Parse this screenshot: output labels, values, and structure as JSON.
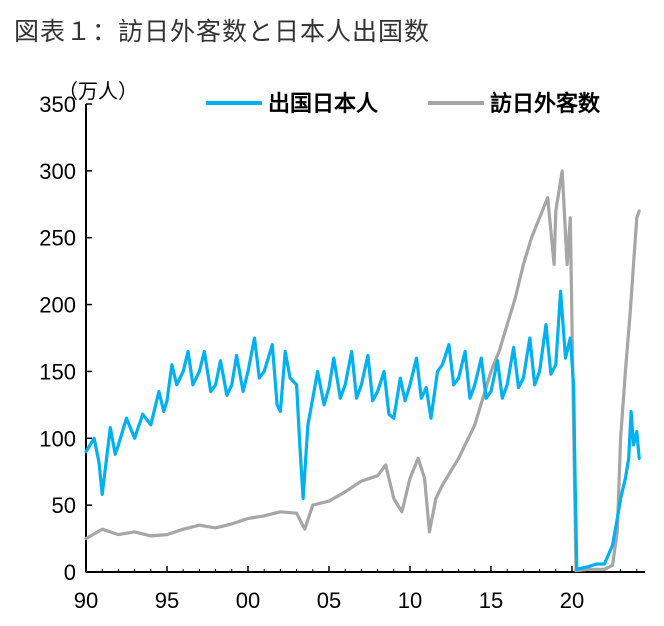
{
  "figure_title": "図表１：訪日外客数と日本人出国数",
  "chart_data": {
    "type": "line",
    "unit_label": "（万人）",
    "xlim": [
      1990,
      2024.2
    ],
    "ylim": [
      0,
      350
    ],
    "yticks": [
      0,
      50,
      100,
      150,
      200,
      250,
      300,
      350
    ],
    "xticks": [
      {
        "x": 1990,
        "label": "90"
      },
      {
        "x": 1995,
        "label": "95"
      },
      {
        "x": 2000,
        "label": "00"
      },
      {
        "x": 2005,
        "label": "05"
      },
      {
        "x": 2010,
        "label": "10"
      },
      {
        "x": 2015,
        "label": "15"
      },
      {
        "x": 2020,
        "label": "20"
      }
    ],
    "legend_position": "top-right",
    "grid": false,
    "series": [
      {
        "name": "出国日本人",
        "color": "#00B0F0",
        "points": [
          [
            1990.0,
            90
          ],
          [
            1990.5,
            100
          ],
          [
            1990.8,
            82
          ],
          [
            1991.0,
            58
          ],
          [
            1991.5,
            108
          ],
          [
            1991.8,
            88
          ],
          [
            1992.0,
            95
          ],
          [
            1992.5,
            115
          ],
          [
            1993.0,
            100
          ],
          [
            1993.5,
            118
          ],
          [
            1994.0,
            110
          ],
          [
            1994.5,
            135
          ],
          [
            1994.8,
            120
          ],
          [
            1995.0,
            128
          ],
          [
            1995.3,
            155
          ],
          [
            1995.6,
            140
          ],
          [
            1996.0,
            150
          ],
          [
            1996.3,
            165
          ],
          [
            1996.6,
            140
          ],
          [
            1997.0,
            150
          ],
          [
            1997.3,
            165
          ],
          [
            1997.7,
            135
          ],
          [
            1998.0,
            140
          ],
          [
            1998.3,
            158
          ],
          [
            1998.7,
            132
          ],
          [
            1999.0,
            140
          ],
          [
            1999.3,
            162
          ],
          [
            1999.7,
            135
          ],
          [
            2000.0,
            150
          ],
          [
            2000.4,
            175
          ],
          [
            2000.7,
            145
          ],
          [
            2001.0,
            150
          ],
          [
            2001.5,
            170
          ],
          [
            2001.8,
            125
          ],
          [
            2002.0,
            120
          ],
          [
            2002.3,
            165
          ],
          [
            2002.6,
            145
          ],
          [
            2003.0,
            140
          ],
          [
            2003.2,
            95
          ],
          [
            2003.4,
            55
          ],
          [
            2003.7,
            110
          ],
          [
            2004.0,
            130
          ],
          [
            2004.3,
            150
          ],
          [
            2004.7,
            125
          ],
          [
            2005.0,
            138
          ],
          [
            2005.3,
            160
          ],
          [
            2005.7,
            130
          ],
          [
            2006.0,
            140
          ],
          [
            2006.4,
            165
          ],
          [
            2006.7,
            130
          ],
          [
            2007.0,
            140
          ],
          [
            2007.4,
            162
          ],
          [
            2007.7,
            128
          ],
          [
            2008.0,
            135
          ],
          [
            2008.4,
            150
          ],
          [
            2008.7,
            118
          ],
          [
            2009.0,
            115
          ],
          [
            2009.4,
            145
          ],
          [
            2009.7,
            128
          ],
          [
            2010.0,
            140
          ],
          [
            2010.4,
            160
          ],
          [
            2010.7,
            130
          ],
          [
            2011.0,
            138
          ],
          [
            2011.3,
            115
          ],
          [
            2011.7,
            150
          ],
          [
            2012.0,
            155
          ],
          [
            2012.4,
            170
          ],
          [
            2012.7,
            140
          ],
          [
            2013.0,
            145
          ],
          [
            2013.4,
            165
          ],
          [
            2013.7,
            130
          ],
          [
            2014.0,
            140
          ],
          [
            2014.4,
            160
          ],
          [
            2014.7,
            130
          ],
          [
            2015.0,
            135
          ],
          [
            2015.4,
            158
          ],
          [
            2015.7,
            130
          ],
          [
            2016.0,
            140
          ],
          [
            2016.4,
            168
          ],
          [
            2016.7,
            138
          ],
          [
            2017.0,
            145
          ],
          [
            2017.4,
            175
          ],
          [
            2017.7,
            140
          ],
          [
            2018.0,
            150
          ],
          [
            2018.4,
            185
          ],
          [
            2018.7,
            148
          ],
          [
            2019.0,
            155
          ],
          [
            2019.3,
            210
          ],
          [
            2019.6,
            160
          ],
          [
            2019.9,
            175
          ],
          [
            2020.1,
            140
          ],
          [
            2020.2,
            65
          ],
          [
            2020.3,
            2
          ],
          [
            2021.0,
            4
          ],
          [
            2021.5,
            6
          ],
          [
            2022.0,
            6
          ],
          [
            2022.5,
            20
          ],
          [
            2022.8,
            40
          ],
          [
            2023.0,
            55
          ],
          [
            2023.3,
            70
          ],
          [
            2023.5,
            85
          ],
          [
            2023.65,
            120
          ],
          [
            2023.8,
            95
          ],
          [
            2024.0,
            105
          ],
          [
            2024.15,
            85
          ]
        ]
      },
      {
        "name": "訪日外客数",
        "color": "#A6A6A6",
        "points": [
          [
            1990.0,
            25
          ],
          [
            1991.0,
            32
          ],
          [
            1992.0,
            28
          ],
          [
            1993.0,
            30
          ],
          [
            1994.0,
            27
          ],
          [
            1995.0,
            28
          ],
          [
            1996.0,
            32
          ],
          [
            1997.0,
            35
          ],
          [
            1998.0,
            33
          ],
          [
            1999.0,
            36
          ],
          [
            2000.0,
            40
          ],
          [
            2001.0,
            42
          ],
          [
            2002.0,
            45
          ],
          [
            2003.0,
            44
          ],
          [
            2003.5,
            32
          ],
          [
            2004.0,
            50
          ],
          [
            2005.0,
            53
          ],
          [
            2006.0,
            60
          ],
          [
            2007.0,
            68
          ],
          [
            2008.0,
            72
          ],
          [
            2008.5,
            80
          ],
          [
            2009.0,
            55
          ],
          [
            2009.5,
            45
          ],
          [
            2010.0,
            70
          ],
          [
            2010.5,
            85
          ],
          [
            2010.9,
            70
          ],
          [
            2011.2,
            30
          ],
          [
            2011.6,
            55
          ],
          [
            2012.0,
            65
          ],
          [
            2013.0,
            85
          ],
          [
            2014.0,
            110
          ],
          [
            2014.5,
            130
          ],
          [
            2015.0,
            150
          ],
          [
            2015.5,
            165
          ],
          [
            2016.0,
            185
          ],
          [
            2016.5,
            205
          ],
          [
            2017.0,
            230
          ],
          [
            2017.5,
            250
          ],
          [
            2018.0,
            265
          ],
          [
            2018.5,
            280
          ],
          [
            2018.9,
            230
          ],
          [
            2019.0,
            270
          ],
          [
            2019.4,
            300
          ],
          [
            2019.7,
            230
          ],
          [
            2019.9,
            265
          ],
          [
            2020.1,
            110
          ],
          [
            2020.25,
            1
          ],
          [
            2021.0,
            2
          ],
          [
            2021.5,
            2
          ],
          [
            2022.0,
            2
          ],
          [
            2022.5,
            5
          ],
          [
            2022.8,
            30
          ],
          [
            2023.0,
            100
          ],
          [
            2023.3,
            150
          ],
          [
            2023.6,
            195
          ],
          [
            2023.8,
            230
          ],
          [
            2024.0,
            265
          ],
          [
            2024.15,
            270
          ]
        ]
      }
    ]
  }
}
